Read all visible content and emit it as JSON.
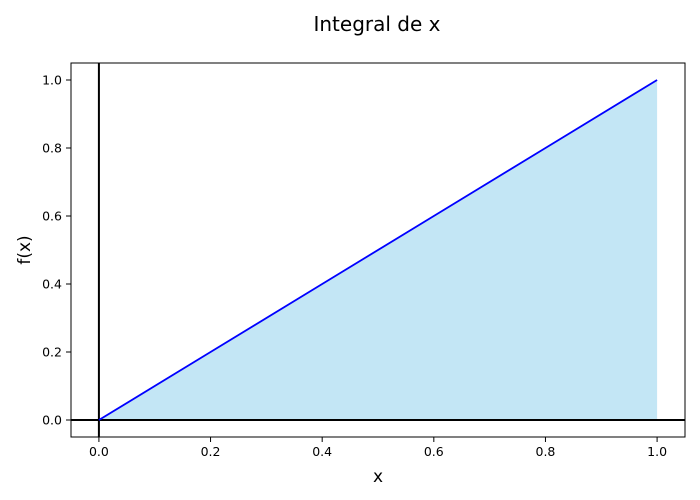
{
  "chart_data": {
    "type": "area",
    "title": "Integral de x",
    "xlabel": "x",
    "ylabel": "f(x)",
    "xlim": [
      -0.05,
      1.05
    ],
    "ylim": [
      -0.05,
      1.05
    ],
    "xticks": [
      "0.0",
      "0.2",
      "0.4",
      "0.6",
      "0.8",
      "1.0"
    ],
    "yticks": [
      "0.0",
      "0.2",
      "0.4",
      "0.6",
      "0.8",
      "1.0"
    ],
    "grid": false,
    "reference_lines": {
      "x": 0,
      "y": 0
    },
    "series": [
      {
        "x": [
          0.0,
          0.2,
          0.4,
          0.6,
          0.8,
          1.0
        ],
        "y": [
          0.0,
          0.2,
          0.4,
          0.6,
          0.8,
          1.0
        ],
        "fill_to": 0
      }
    ],
    "colors": {
      "line": "#0000ff",
      "fill": "#87ceeb",
      "reference": "#000000"
    }
  }
}
